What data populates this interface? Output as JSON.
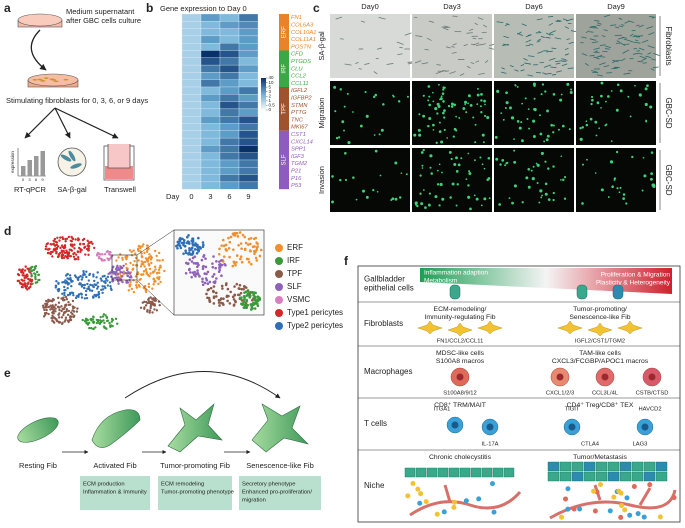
{
  "panel_labels": [
    "a",
    "b",
    "c",
    "d",
    "e",
    "f"
  ],
  "panel_a": {
    "dish_label": [
      "Medium supernatant",
      "after GBC cells culture"
    ],
    "stimulation_label": "Stimulating fibroblasts for 0, 3, 6, or 9 days",
    "qpcr_axis": "expression",
    "qpcr_days": [
      "0",
      "3",
      "6",
      "9"
    ],
    "assays": [
      "RT-qPCR",
      "SA-β-gal",
      "Transwell"
    ]
  },
  "panel_b": {
    "type": "heatmap",
    "title": "Gene expression to Day 0",
    "x_label": "Day",
    "columns": [
      "0",
      "3",
      "6",
      "9"
    ],
    "colorscale": [
      "#f7fbff",
      "#6baed6",
      "#08306b"
    ],
    "colorbar_ticks": [
      40,
      10,
      5,
      3,
      2,
      1,
      0.5,
      0
    ],
    "groups": [
      {
        "name": "ERF",
        "color": "#e8832a",
        "genes": [
          "FN1",
          "COL6A3",
          "COL10A1",
          "COL11A1",
          "POSTN"
        ],
        "values": [
          [
            1,
            3,
            2,
            5
          ],
          [
            1,
            2,
            3,
            4
          ],
          [
            1,
            2,
            2,
            3
          ],
          [
            1,
            3,
            2,
            3
          ],
          [
            1,
            2,
            5,
            3
          ]
        ]
      },
      {
        "name": "IRF",
        "color": "#3aa845",
        "genes": [
          "CFD",
          "PTGDS",
          "CLU",
          "CCL2",
          "CCL11"
        ],
        "values": [
          [
            1,
            40,
            10,
            3
          ],
          [
            1,
            10,
            5,
            2
          ],
          [
            1,
            5,
            10,
            3
          ],
          [
            1,
            3,
            5,
            2
          ],
          [
            1,
            5,
            3,
            2
          ]
        ]
      },
      {
        "name": "TPF",
        "color": "#a0522d",
        "genes": [
          "IGFL2",
          "IGFBP2",
          "STMN",
          "PTTG",
          "TNC",
          "MKI67"
        ],
        "values": [
          [
            1,
            2,
            3,
            5
          ],
          [
            1,
            3,
            5,
            3
          ],
          [
            1,
            2,
            10,
            5
          ],
          [
            1,
            2,
            5,
            3
          ],
          [
            1,
            3,
            5,
            10
          ],
          [
            1,
            2,
            3,
            5
          ]
        ]
      },
      {
        "name": "SLF",
        "color": "#8e5bbf",
        "genes": [
          "CST1",
          "CXCL14",
          "SPP1",
          "IGF3",
          "TGM2",
          "P21",
          "P16",
          "P53"
        ],
        "values": [
          [
            1,
            2,
            3,
            10
          ],
          [
            1,
            2,
            5,
            10
          ],
          [
            1,
            3,
            5,
            40
          ],
          [
            1,
            2,
            5,
            10
          ],
          [
            1,
            2,
            3,
            5
          ],
          [
            1,
            2,
            3,
            5
          ],
          [
            1,
            2,
            5,
            10
          ],
          [
            1,
            2,
            3,
            5
          ]
        ]
      }
    ]
  },
  "panel_c": {
    "columns": [
      "Day0",
      "Day3",
      "Day6",
      "Day9"
    ],
    "rows": [
      "SA-β-gal",
      "Migration",
      "Invasion"
    ],
    "side_labels": [
      "Fibroblasts",
      "GBC-SD",
      "GBC-SD"
    ]
  },
  "panel_d": {
    "legend": [
      {
        "name": "ERF",
        "color": "#f28e2b"
      },
      {
        "name": "IRF",
        "color": "#3a9a3a"
      },
      {
        "name": "TPF",
        "color": "#8c5a4a"
      },
      {
        "name": "SLF",
        "color": "#8f62b8"
      },
      {
        "name": "VSMC",
        "color": "#d87fc0"
      },
      {
        "name": "Type1 pericytes",
        "color": "#d62728"
      },
      {
        "name": "Type2 pericytes",
        "color": "#2f6fb5"
      }
    ]
  },
  "panel_e": {
    "stages": [
      "Resting Fib",
      "Activated Fib",
      "Tumor-promoting Fib",
      "Senescence-like Fib"
    ],
    "notes": [
      [
        "ECM production",
        "Inflammation & Immunity"
      ],
      [
        "ECM remodeling",
        "Tumor-promoting phenotype"
      ],
      [
        "Secretory phenotype",
        "Enhanced pro-proliferation/",
        "migration"
      ]
    ]
  },
  "panel_f": {
    "gradient": {
      "left": [
        "Inflammation adaption",
        "Metabolism"
      ],
      "right": [
        "Proliferation & Migration",
        "Plasticity & Heterogeneity"
      ]
    },
    "rows": [
      {
        "label": [
          "Gallbladder",
          "epithelial cells"
        ]
      },
      {
        "label": [
          "Fibroblasts"
        ],
        "left": {
          "title": [
            "ECM-remodeling/",
            "Immunity-regulating Fib"
          ],
          "markers": [
            "FN1/CCL2/CCL11"
          ]
        },
        "right": {
          "title": [
            "Tumor-promoting/",
            "Senescence-like Fib"
          ],
          "markers": [
            "IGFL2/CST1/TGM2"
          ]
        }
      },
      {
        "label": [
          "Macrophages"
        ],
        "left": {
          "title": [
            "MDSC-like cells",
            "S100A8 macros"
          ],
          "markers": [
            "S100A8/9/12"
          ]
        },
        "right": {
          "title": [
            "TAM-like cells",
            "CXCL3/FCGBP/APOC1 macros"
          ],
          "markers": [
            "CXCL1/2/3",
            "CCL3L/4L",
            "CSTB/CTSD"
          ]
        }
      },
      {
        "label": [
          "T cells"
        ],
        "left": {
          "title": [
            "CD8⁺ TRM/MAIT"
          ],
          "markers": [
            "ITGA1",
            "IL-17A"
          ]
        },
        "right": {
          "title": [
            "CD4⁺ Treg/CD8⁺ TEX"
          ],
          "markers": [
            "TIGIT",
            "CTLA4",
            "HAVCD2",
            "LAG3"
          ]
        }
      },
      {
        "label": [
          "Niche"
        ],
        "left": {
          "title": [
            "Chronic cholecystitis"
          ]
        },
        "right": {
          "title": [
            "Tumor/Metastasis"
          ]
        }
      }
    ]
  }
}
